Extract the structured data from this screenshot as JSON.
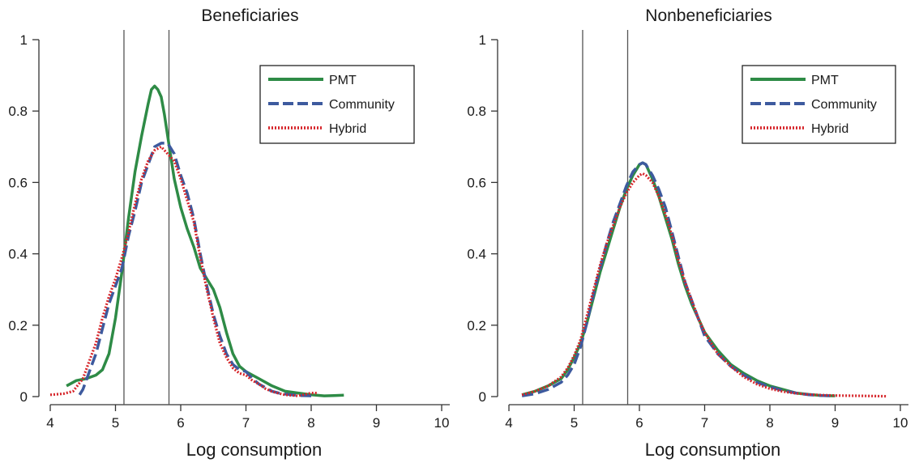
{
  "chart_data": [
    {
      "type": "line",
      "title": "Beneficiaries",
      "xlabel": "Log consumption",
      "ylabel": "",
      "xlim": [
        4,
        10
      ],
      "ylim": [
        0,
        1
      ],
      "xticks": [
        "4",
        "5",
        "6",
        "7",
        "8",
        "9",
        "10"
      ],
      "yticks": [
        "0",
        "0.2",
        "0.4",
        "0.6",
        "0.8",
        "1"
      ],
      "vlines": [
        5.13,
        5.82
      ],
      "legend_position": "top-right",
      "series": [
        {
          "name": "PMT",
          "color": "#2e8b46",
          "style": "solid",
          "x": [
            4.25,
            4.4,
            4.55,
            4.7,
            4.8,
            4.9,
            5.0,
            5.1,
            5.2,
            5.3,
            5.4,
            5.5,
            5.55,
            5.6,
            5.65,
            5.7,
            5.75,
            5.8,
            5.85,
            5.9,
            6.0,
            6.1,
            6.2,
            6.3,
            6.4,
            6.5,
            6.6,
            6.7,
            6.8,
            6.9,
            7.0,
            7.2,
            7.4,
            7.6,
            7.8,
            8.0,
            8.2,
            8.35,
            8.5
          ],
          "y": [
            0.03,
            0.045,
            0.05,
            0.06,
            0.075,
            0.12,
            0.22,
            0.35,
            0.5,
            0.63,
            0.73,
            0.82,
            0.86,
            0.87,
            0.86,
            0.84,
            0.79,
            0.73,
            0.67,
            0.61,
            0.53,
            0.47,
            0.42,
            0.36,
            0.33,
            0.3,
            0.25,
            0.18,
            0.12,
            0.085,
            0.07,
            0.05,
            0.03,
            0.015,
            0.01,
            0.005,
            0.002,
            0.003,
            0.004
          ]
        },
        {
          "name": "Community",
          "color": "#3d5a9e",
          "style": "dashed",
          "x": [
            4.45,
            4.5,
            4.6,
            4.7,
            4.8,
            4.9,
            5.0,
            5.1,
            5.2,
            5.3,
            5.4,
            5.5,
            5.6,
            5.7,
            5.8,
            5.9,
            6.0,
            6.1,
            6.2,
            6.3,
            6.4,
            6.5,
            6.6,
            6.7,
            6.8,
            6.9,
            7.0,
            7.1,
            7.2,
            7.3,
            7.4,
            7.5,
            7.6,
            7.7,
            7.8,
            8.0
          ],
          "y": [
            0.005,
            0.02,
            0.07,
            0.12,
            0.19,
            0.26,
            0.31,
            0.36,
            0.45,
            0.52,
            0.6,
            0.65,
            0.7,
            0.71,
            0.71,
            0.68,
            0.62,
            0.57,
            0.5,
            0.4,
            0.31,
            0.23,
            0.17,
            0.12,
            0.09,
            0.075,
            0.07,
            0.05,
            0.035,
            0.025,
            0.015,
            0.01,
            0.007,
            0.005,
            0.003,
            0.002
          ]
        },
        {
          "name": "Hybrid",
          "color": "#d6262b",
          "style": "dotted",
          "x": [
            4.0,
            4.2,
            4.35,
            4.5,
            4.6,
            4.7,
            4.8,
            4.9,
            5.0,
            5.1,
            5.2,
            5.3,
            5.4,
            5.5,
            5.6,
            5.7,
            5.8,
            5.9,
            6.0,
            6.1,
            6.2,
            6.3,
            6.4,
            6.5,
            6.6,
            6.7,
            6.8,
            6.9,
            7.0,
            7.1,
            7.2,
            7.3,
            7.4,
            7.5,
            7.6,
            7.8,
            8.0,
            8.1
          ],
          "y": [
            0.005,
            0.008,
            0.015,
            0.05,
            0.1,
            0.15,
            0.22,
            0.28,
            0.33,
            0.39,
            0.46,
            0.54,
            0.61,
            0.66,
            0.69,
            0.7,
            0.68,
            0.66,
            0.61,
            0.55,
            0.49,
            0.39,
            0.3,
            0.22,
            0.15,
            0.11,
            0.08,
            0.065,
            0.06,
            0.045,
            0.035,
            0.022,
            0.014,
            0.009,
            0.005,
            0.002,
            0.01,
            0.01
          ]
        }
      ]
    },
    {
      "type": "line",
      "title": "Nonbeneficiaries",
      "xlabel": "Log consumption",
      "ylabel": "",
      "xlim": [
        4,
        10
      ],
      "ylim": [
        0,
        1
      ],
      "xticks": [
        "4",
        "5",
        "6",
        "7",
        "8",
        "9",
        "10"
      ],
      "yticks": [
        "0",
        "0.2",
        "0.4",
        "0.6",
        "0.8",
        "1"
      ],
      "vlines": [
        5.13,
        5.82
      ],
      "legend_position": "top-right",
      "series": [
        {
          "name": "PMT",
          "color": "#2e8b46",
          "style": "solid",
          "x": [
            4.2,
            4.4,
            4.6,
            4.8,
            4.9,
            5.0,
            5.1,
            5.2,
            5.3,
            5.4,
            5.5,
            5.6,
            5.7,
            5.8,
            5.9,
            6.0,
            6.05,
            6.1,
            6.2,
            6.3,
            6.4,
            6.5,
            6.6,
            6.7,
            6.8,
            6.9,
            7.0,
            7.2,
            7.4,
            7.6,
            7.8,
            8.0,
            8.2,
            8.4,
            8.6,
            8.8,
            9.0
          ],
          "y": [
            0.005,
            0.015,
            0.03,
            0.05,
            0.075,
            0.11,
            0.15,
            0.21,
            0.28,
            0.35,
            0.41,
            0.47,
            0.53,
            0.58,
            0.62,
            0.65,
            0.655,
            0.65,
            0.61,
            0.56,
            0.5,
            0.44,
            0.37,
            0.31,
            0.26,
            0.22,
            0.18,
            0.13,
            0.09,
            0.065,
            0.045,
            0.03,
            0.02,
            0.01,
            0.006,
            0.003,
            0.002
          ]
        },
        {
          "name": "Community",
          "color": "#3d5a9e",
          "style": "dashed",
          "x": [
            4.2,
            4.4,
            4.6,
            4.8,
            4.9,
            5.0,
            5.1,
            5.2,
            5.3,
            5.4,
            5.5,
            5.6,
            5.7,
            5.8,
            5.9,
            6.0,
            6.05,
            6.1,
            6.2,
            6.3,
            6.4,
            6.5,
            6.6,
            6.7,
            6.8,
            6.9,
            7.0,
            7.2,
            7.4,
            7.6,
            7.8,
            8.0,
            8.2,
            8.4,
            8.6,
            8.8,
            9.0
          ],
          "y": [
            0.002,
            0.008,
            0.02,
            0.04,
            0.06,
            0.09,
            0.14,
            0.21,
            0.29,
            0.36,
            0.43,
            0.49,
            0.54,
            0.59,
            0.63,
            0.65,
            0.655,
            0.65,
            0.62,
            0.58,
            0.53,
            0.46,
            0.39,
            0.32,
            0.27,
            0.22,
            0.17,
            0.12,
            0.085,
            0.06,
            0.04,
            0.027,
            0.017,
            0.01,
            0.005,
            0.003,
            0.002
          ]
        },
        {
          "name": "Hybrid",
          "color": "#d6262b",
          "style": "dotted",
          "x": [
            4.2,
            4.4,
            4.6,
            4.8,
            4.9,
            5.0,
            5.1,
            5.2,
            5.3,
            5.4,
            5.5,
            5.6,
            5.7,
            5.8,
            5.9,
            6.0,
            6.05,
            6.1,
            6.2,
            6.3,
            6.4,
            6.5,
            6.6,
            6.7,
            6.8,
            6.9,
            7.0,
            7.2,
            7.4,
            7.6,
            7.8,
            8.0,
            8.2,
            8.4,
            8.6,
            8.8,
            9.0,
            9.4,
            9.8
          ],
          "y": [
            0.005,
            0.015,
            0.03,
            0.055,
            0.08,
            0.115,
            0.16,
            0.23,
            0.3,
            0.37,
            0.43,
            0.48,
            0.53,
            0.57,
            0.6,
            0.62,
            0.625,
            0.62,
            0.6,
            0.56,
            0.51,
            0.45,
            0.38,
            0.32,
            0.27,
            0.22,
            0.18,
            0.12,
            0.085,
            0.055,
            0.035,
            0.022,
            0.014,
            0.009,
            0.006,
            0.004,
            0.003,
            0.002,
            0.001
          ]
        }
      ]
    }
  ]
}
